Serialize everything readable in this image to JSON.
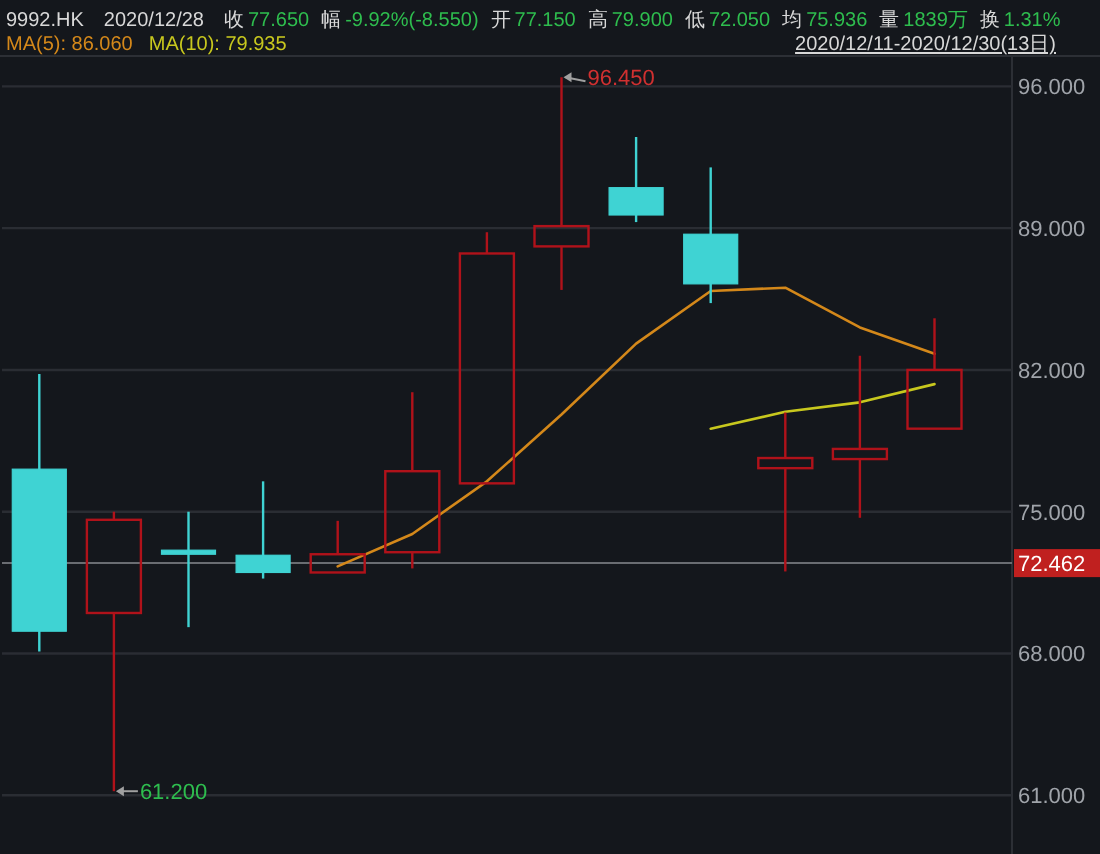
{
  "chart_data": {
    "type": "candlestick",
    "title": "9992.HK",
    "subtitle": "2020/12/28",
    "categories": [
      null,
      null,
      null,
      null,
      null,
      null,
      null,
      null,
      null,
      null,
      null,
      null,
      null
    ],
    "ohlc": [
      [
        77.1,
        81.8,
        68.1,
        69.1
      ],
      [
        70.0,
        75.0,
        61.2,
        74.6
      ],
      [
        73.1,
        75.0,
        69.3,
        72.9
      ],
      [
        72.85,
        76.5,
        71.7,
        72.0
      ],
      [
        72.0,
        74.55,
        72.0,
        72.9
      ],
      [
        73.0,
        80.9,
        72.2,
        77.0
      ],
      [
        76.4,
        88.8,
        76.4,
        87.75
      ],
      [
        88.1,
        96.45,
        85.95,
        89.1
      ],
      [
        91.0,
        93.5,
        89.3,
        89.65
      ],
      [
        88.7,
        92.0,
        85.3,
        86.25
      ],
      [
        77.15,
        79.9,
        72.05,
        77.65
      ],
      [
        77.6,
        82.7,
        74.7,
        78.1
      ],
      [
        79.1,
        84.55,
        79.1,
        82.0
      ]
    ],
    "colors": [
      "#3fd3d3",
      "#b0121a",
      "#3fd3d3",
      "#3fd3d3",
      "#b0121a",
      "#b0121a",
      "#b0121a",
      "#b0121a",
      "#3fd3d3",
      "#3fd3d3",
      "#b0121a",
      "#b0121a",
      "#b0121a"
    ],
    "series": [
      {
        "name": "MA(5): 86.060",
        "type": "line",
        "color": "#d4881a",
        "values": [
          null,
          null,
          null,
          null,
          72.3,
          73.9,
          76.5,
          79.8,
          83.3,
          85.9,
          86.06,
          84.1,
          82.8
        ]
      },
      {
        "name": "MA(10): 79.935",
        "type": "line",
        "color": "#c8c81e",
        "values": [
          null,
          null,
          null,
          null,
          null,
          null,
          null,
          null,
          null,
          79.1,
          79.935,
          80.4,
          81.3
        ]
      }
    ],
    "ylim": [
      58.1,
      97.5
    ],
    "yticks": [
      {
        "value": 61,
        "label": "61.000"
      },
      {
        "value": 68,
        "label": "68.000"
      },
      {
        "value": 75,
        "label": "75.000"
      },
      {
        "value": 82,
        "label": "82.000"
      },
      {
        "value": 89,
        "label": "89.000"
      },
      {
        "value": 96,
        "label": "96.000"
      }
    ],
    "grid": "y",
    "legend": "top left",
    "ref_lines": [
      {
        "axis": "y",
        "value": 72.462,
        "label": "72.462",
        "color": "#6a6d72"
      }
    ],
    "annotations": [
      "收 77.650",
      "幅 -9.92%(-8.550)",
      "开 77.150",
      "高 79.900",
      "低 72.050",
      "均 75.936",
      "量 1839万",
      "换 1.31%",
      "2020/12/11-2020/12/30(13日)",
      "96.450",
      "61.200"
    ]
  }
}
